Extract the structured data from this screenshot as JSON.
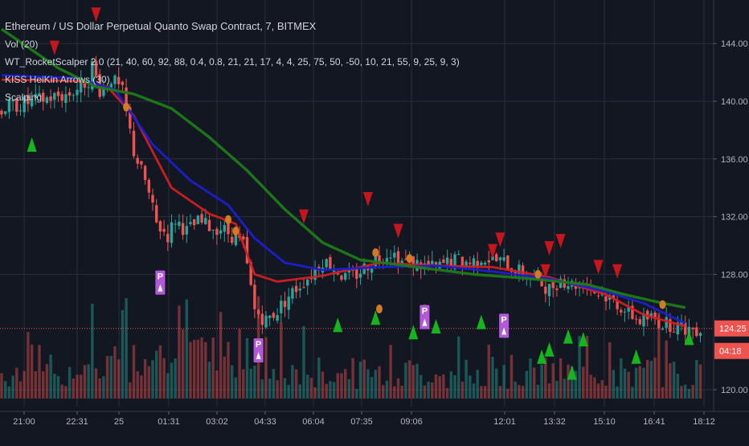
{
  "legend": {
    "title": "Ethereum / US Dollar Perpetual Quanto Swap Contract, 7, BITMEX",
    "indicators": [
      "Vol (20)",
      "WT_RocketScalper 2.0 (21, 40, 60, 92, 88, 0.4, 0.8, 21, 21, 17, 4, 4, 25, 75, 50, -50, 10, 21, 55, 9, 25, 9, 3)",
      "KISS HeiKin Arrows (30)",
      "Scalping"
    ]
  },
  "price_axis": {
    "ticks": [
      "144.00",
      "140.00",
      "136.00",
      "132.00",
      "128.00",
      "120.00"
    ],
    "last_price": "124.25",
    "countdown": "04:18"
  },
  "time_axis": {
    "ticks": [
      "21:00",
      "22:31",
      "25",
      "01:31",
      "03:02",
      "04:33",
      "06:04",
      "07:35",
      "09:06",
      "12:01",
      "13:32",
      "15:10",
      "16:41",
      "18:12"
    ]
  },
  "colors": {
    "background": "#131722",
    "grid": "#2a2e39",
    "up": "#26a69a",
    "down": "#ef5350",
    "ma_fast": "#d11f22",
    "ma_mid": "#1a1fd6",
    "ma_slow": "#1c7a18",
    "arrow_up": "#16b51f",
    "arrow_down": "#c4161c",
    "dot": "#d17b26",
    "p_marker": "#b358d6"
  },
  "chart_data": {
    "type": "candlestick",
    "title": "Ethereum / US Dollar Perpetual Quanto Swap Contract, 7, BITMEX",
    "ylim": [
      119.3,
      146.2
    ],
    "x_ticks": [
      "21:00",
      "22:31",
      "25",
      "01:31",
      "03:02",
      "04:33",
      "06:04",
      "07:35",
      "09:06",
      "12:01",
      "13:32",
      "15:10",
      "16:41",
      "18:12"
    ],
    "y_ticks": [
      144,
      140,
      136,
      132,
      128,
      120
    ],
    "last_price": 124.25,
    "close_path": [
      [
        0,
        139.5
      ],
      [
        12,
        140.2
      ],
      [
        18,
        140.5
      ],
      [
        23,
        141.5
      ],
      [
        24,
        142.5
      ],
      [
        26,
        140.8
      ],
      [
        29,
        141.6
      ],
      [
        32,
        140.6
      ],
      [
        35,
        136.5
      ],
      [
        38,
        134.5
      ],
      [
        41,
        131.5
      ],
      [
        44,
        130.7
      ],
      [
        46,
        131.8
      ],
      [
        49,
        131.0
      ],
      [
        52,
        131.6
      ],
      [
        55,
        131.3
      ],
      [
        58,
        131.2
      ],
      [
        61,
        130.7
      ],
      [
        64,
        130.0
      ],
      [
        67,
        125.5
      ],
      [
        70,
        124.8
      ],
      [
        73,
        125.5
      ],
      [
        76,
        126.5
      ],
      [
        79,
        127.3
      ],
      [
        82,
        128.0
      ],
      [
        85,
        129.0
      ],
      [
        88,
        128.5
      ],
      [
        91,
        127.7
      ],
      [
        94,
        128.0
      ],
      [
        97,
        128.7
      ],
      [
        100,
        129.2
      ],
      [
        103,
        129.6
      ],
      [
        106,
        128.9
      ],
      [
        109,
        128.8
      ],
      [
        112,
        128.6
      ],
      [
        115,
        128.4
      ],
      [
        118,
        128.8
      ],
      [
        121,
        129.0
      ],
      [
        124,
        128.8
      ],
      [
        127,
        129.2
      ],
      [
        130,
        129.0
      ],
      [
        133,
        128.8
      ],
      [
        136,
        128.3
      ],
      [
        139,
        128.0
      ],
      [
        142,
        127.5
      ],
      [
        145,
        127.0
      ],
      [
        148,
        127.7
      ],
      [
        151,
        127.3
      ],
      [
        154,
        127.4
      ],
      [
        157,
        126.8
      ],
      [
        160,
        126.5
      ],
      [
        163,
        126.0
      ],
      [
        166,
        125.3
      ],
      [
        169,
        124.8
      ],
      [
        172,
        125.0
      ],
      [
        175,
        124.6
      ],
      [
        178,
        124.5
      ],
      [
        181,
        124.25
      ]
    ],
    "series": [
      {
        "values": [
          [
            0,
            141.5
          ],
          [
            20,
            141.4
          ],
          [
            28,
            141.0
          ],
          [
            35,
            139.0
          ],
          [
            45,
            134.0
          ],
          [
            55,
            132.2
          ],
          [
            62,
            131.5
          ],
          [
            67,
            128.0
          ],
          [
            73,
            127.5
          ],
          [
            85,
            127.9
          ],
          [
            100,
            128.8
          ],
          [
            115,
            128.6
          ],
          [
            130,
            128.5
          ],
          [
            145,
            127.8
          ],
          [
            160,
            126.6
          ],
          [
            170,
            125.2
          ],
          [
            181,
            124.4
          ]
        ]
      },
      {
        "values": [
          [
            0,
            141.8
          ],
          [
            20,
            141.6
          ],
          [
            30,
            140.8
          ],
          [
            40,
            137.0
          ],
          [
            50,
            134.5
          ],
          [
            60,
            132.8
          ],
          [
            67,
            130.5
          ],
          [
            75,
            128.8
          ],
          [
            85,
            128.3
          ],
          [
            100,
            128.5
          ],
          [
            115,
            128.6
          ],
          [
            130,
            128.2
          ],
          [
            145,
            127.7
          ],
          [
            160,
            126.8
          ],
          [
            170,
            126.0
          ],
          [
            181,
            124.6
          ]
        ]
      },
      {
        "values": [
          [
            0,
            145.0
          ],
          [
            15,
            142.3
          ],
          [
            25,
            141.0
          ],
          [
            35,
            140.5
          ],
          [
            45,
            139.5
          ],
          [
            55,
            137.5
          ],
          [
            65,
            135.2
          ],
          [
            75,
            132.5
          ],
          [
            85,
            130.2
          ],
          [
            95,
            129.0
          ],
          [
            110,
            128.5
          ],
          [
            125,
            128.0
          ],
          [
            140,
            127.7
          ],
          [
            155,
            127.3
          ],
          [
            165,
            126.6
          ],
          [
            175,
            126.0
          ],
          [
            181,
            125.7
          ]
        ]
      }
    ],
    "volume_scale_max": 100,
    "markers_down_arrow": [
      [
        25,
        146.0
      ],
      [
        14,
        143.7
      ],
      [
        80,
        132.0
      ],
      [
        97,
        133.2
      ],
      [
        105,
        131.0
      ],
      [
        132,
        130.4
      ],
      [
        145,
        129.8
      ],
      [
        148,
        130.3
      ],
      [
        158,
        128.5
      ],
      [
        163,
        128.2
      ],
      [
        130,
        129.6
      ],
      [
        144,
        128.2
      ]
    ],
    "markers_up_arrow": [
      [
        8,
        137.0
      ],
      [
        89,
        124.5
      ],
      [
        99,
        125.0
      ],
      [
        109,
        124.0
      ],
      [
        115,
        124.4
      ],
      [
        127,
        124.7
      ],
      [
        143,
        122.3
      ],
      [
        145,
        122.8
      ],
      [
        151,
        121.2
      ],
      [
        154,
        123.5
      ],
      [
        168,
        122.3
      ],
      [
        182,
        123.6
      ],
      [
        150,
        123.7
      ]
    ],
    "markers_dot": [
      [
        33,
        139.6
      ],
      [
        60,
        131.8
      ],
      [
        62,
        131.0
      ],
      [
        99,
        129.5
      ],
      [
        108,
        129.1
      ],
      [
        112,
        125.6
      ],
      [
        142,
        128.0
      ],
      [
        175,
        125.9
      ],
      [
        112,
        124.8
      ],
      [
        100,
        125.6
      ]
    ],
    "markers_p": [
      [
        42,
        127.6
      ],
      [
        68,
        122.9
      ],
      [
        112,
        125.2
      ],
      [
        133,
        124.6
      ]
    ]
  }
}
